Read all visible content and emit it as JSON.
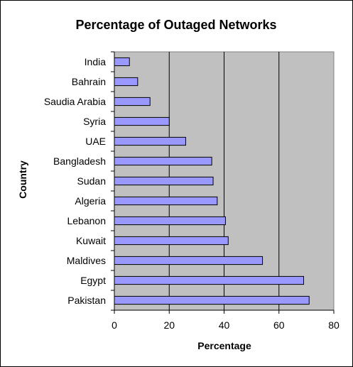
{
  "chart_data": {
    "type": "bar",
    "orientation": "horizontal",
    "title": "Percentage of Outaged Networks",
    "xlabel": "Percentage",
    "ylabel": "Country",
    "categories": [
      "India",
      "Bahrain",
      "Saudia Arabia",
      "Syria",
      "UAE",
      "Bangladesh",
      "Sudan",
      "Algeria",
      "Lebanon",
      "Kuwait",
      "Maldives",
      "Egypt",
      "Pakistan"
    ],
    "values": [
      5.5,
      8.5,
      13,
      20,
      26,
      35.5,
      36,
      37.5,
      40.5,
      41.5,
      54,
      69,
      71
    ],
    "xlim": [
      0,
      80
    ],
    "xticks": [
      "0",
      "20",
      "40",
      "60",
      "80"
    ],
    "grid": true,
    "legend": false,
    "colors": {
      "plot_background": "#c0c0c0",
      "bar_fill": "#9999ff",
      "bar_stroke": "#000000",
      "gridline": "#000000"
    }
  }
}
